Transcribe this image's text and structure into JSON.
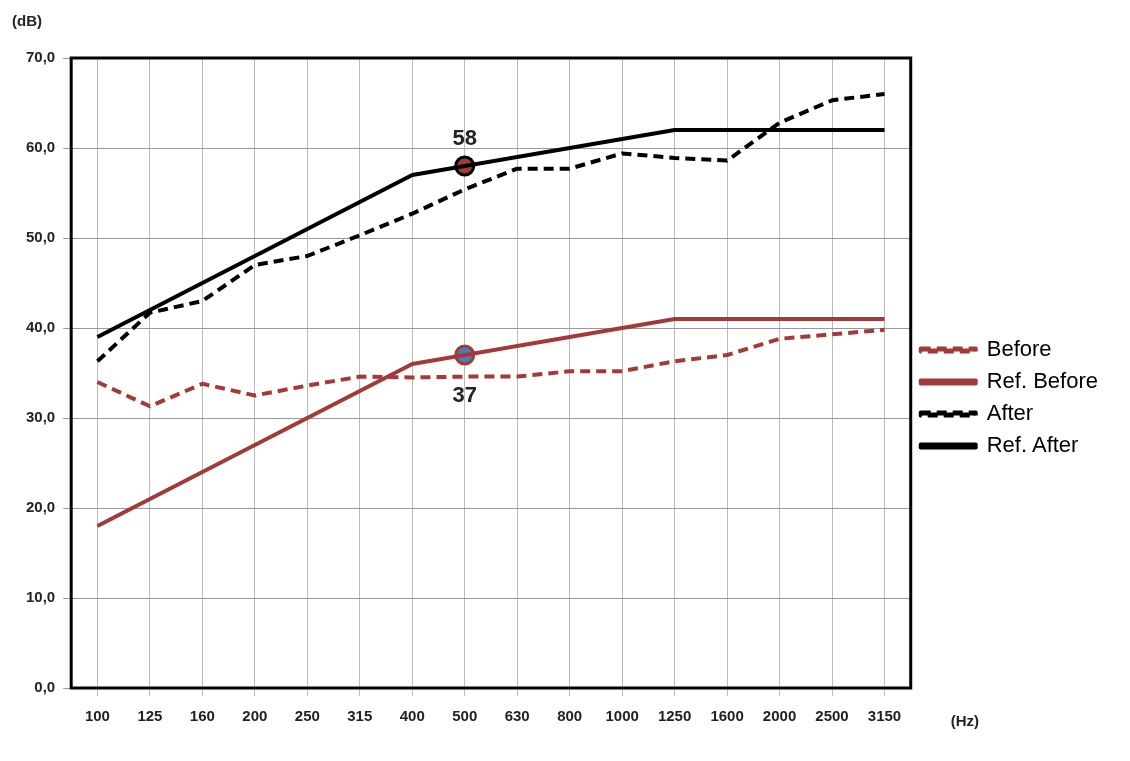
{
  "chart_data": {
    "type": "line",
    "xlabel": "(Hz)",
    "ylabel": "(dB)",
    "categories": [
      "100",
      "125",
      "160",
      "200",
      "250",
      "315",
      "400",
      "500",
      "630",
      "800",
      "1000",
      "1250",
      "1600",
      "2000",
      "2500",
      "3150"
    ],
    "series": [
      {
        "name": "Before",
        "color": "#a33a3a",
        "line_style": "dashed",
        "values": [
          34,
          31.3,
          33.8,
          32.5,
          33.6,
          34.6,
          34.5,
          34.6,
          34.6,
          35.2,
          35.2,
          36.3,
          37,
          38.8,
          39.3,
          39.8
        ]
      },
      {
        "name": "Ref. Before",
        "color": "#a33a3a",
        "line_style": "solid",
        "values": [
          18,
          21,
          24,
          27,
          30,
          33,
          36,
          37,
          38,
          39,
          40,
          41,
          41,
          41,
          41,
          41
        ]
      },
      {
        "name": "After",
        "color": "#000000",
        "line_style": "dashed",
        "values": [
          36.3,
          41.7,
          43,
          47,
          48,
          50.3,
          52.7,
          55.4,
          57.7,
          57.7,
          59.4,
          58.9,
          58.6,
          62.8,
          65.3,
          66
        ]
      },
      {
        "name": "Ref. After",
        "color": "#000000",
        "line_style": "solid",
        "values": [
          39,
          42,
          45,
          48,
          51,
          54,
          57,
          58,
          59,
          60,
          61,
          62,
          62,
          62,
          62,
          62
        ]
      },
      {
        "type": "scatter",
        "marker": "circle",
        "color": "#a33a3a",
        "colors": [
          "#4a7ebb"
        ],
        "x": [
          "500"
        ],
        "values": [
          37
        ]
      },
      {
        "type": "scatter",
        "marker": "circle",
        "color": "#000000",
        "colors": [
          "#a33a3a"
        ],
        "x": [
          "500"
        ],
        "values": [
          58
        ]
      }
    ],
    "annotations": [
      {
        "text": "58",
        "x": "500",
        "y": 58
      },
      {
        "text": "37",
        "x": "500",
        "y": 37
      }
    ],
    "ylim": [
      0,
      70
    ],
    "yticks": [
      {
        "value": 0,
        "label": "0,0"
      },
      {
        "value": 10,
        "label": "10,0"
      },
      {
        "value": 20,
        "label": "20,0"
      },
      {
        "value": 30,
        "label": "30,0"
      },
      {
        "value": 40,
        "label": "40,0"
      },
      {
        "value": 50,
        "label": "50,0"
      },
      {
        "value": 60,
        "label": "60,0"
      },
      {
        "value": 70,
        "label": "70,0"
      }
    ],
    "grid": true,
    "legend": "right"
  }
}
